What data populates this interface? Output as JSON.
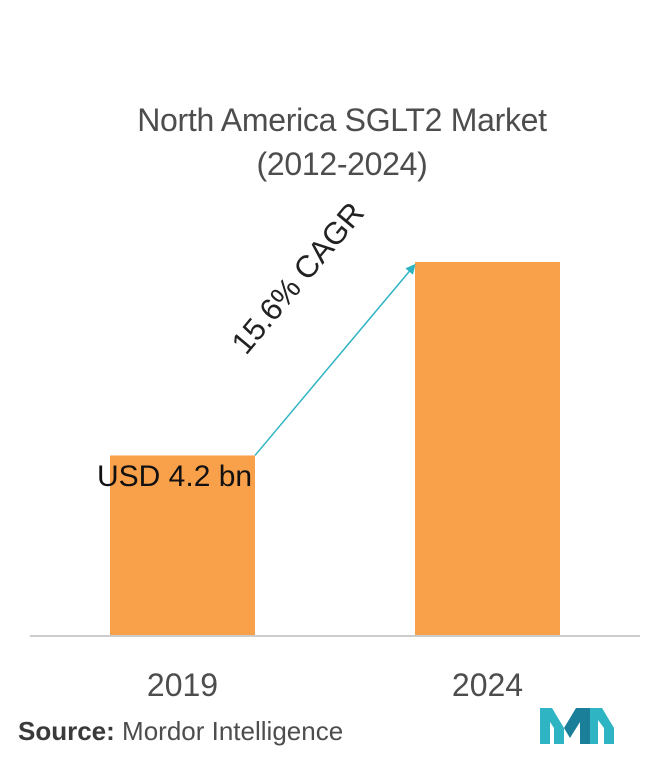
{
  "chart_data": {
    "type": "bar",
    "title_line1": "North America SGLT2 Market",
    "title_line2": "(2012-2024)",
    "categories": [
      "2019",
      "2024"
    ],
    "values": [
      4.2,
      8.7
    ],
    "value_labels": [
      "USD  4.2 bn",
      ""
    ],
    "annotation": "15.6% CAGR",
    "ylim": [
      0,
      10
    ],
    "grid": false,
    "bar_color": "#f9a04b",
    "arrow_color": "#2fb4c3"
  },
  "source": {
    "label": "Source:",
    "text": "Mordor Intelligence"
  },
  "brand": {
    "logo_icon": "mordor-intelligence-logo-icon",
    "colors": [
      "#2fb4c3",
      "#1c7f99"
    ]
  }
}
